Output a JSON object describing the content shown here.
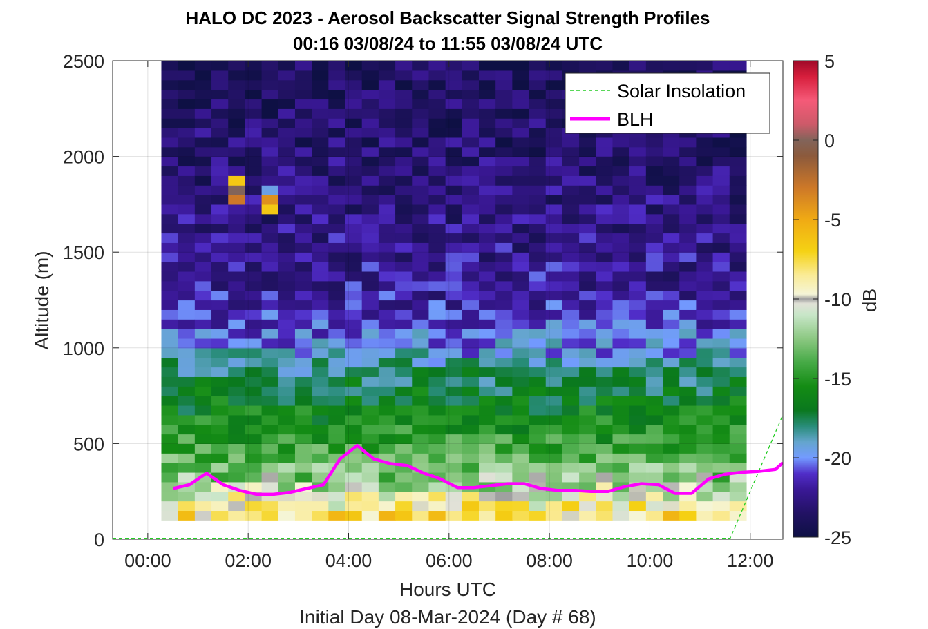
{
  "chart_data": {
    "type": "heatmap",
    "title": "HALO DC 2023 - Aerosol Backscatter Signal Strength Profiles",
    "subtitle": "00:16 03/08/24 to 11:55 03/08/24  UTC",
    "xlabel": "Hours UTC",
    "xlabel2": "Initial Day 08-Mar-2024 (Day # 68)",
    "ylabel": "Altitude (m)",
    "xlim": [
      -0.7,
      12.65
    ],
    "ylim": [
      0,
      2500
    ],
    "x_ticks": [
      0,
      2,
      4,
      6,
      8,
      10,
      12
    ],
    "x_tick_labels": [
      "00:00",
      "02:00",
      "04:00",
      "06:00",
      "08:00",
      "10:00",
      "12:00"
    ],
    "y_ticks": [
      0,
      500,
      1000,
      1500,
      2000,
      2500
    ],
    "y_tick_labels": [
      "0",
      "500",
      "1000",
      "1500",
      "2000",
      "2500"
    ],
    "grid": true,
    "colorbar": {
      "label": "dB",
      "range": [
        -25,
        5
      ],
      "ticks": [
        5,
        0,
        -5,
        -10,
        -15,
        -20,
        -25
      ],
      "tick_labels": [
        "5",
        "0",
        "-5",
        "-10",
        "-15",
        "-20",
        "-25"
      ]
    },
    "heatmap": {
      "x_start_hour": 0.27,
      "x_end_hour": 11.92,
      "y_bottom_m": 100,
      "y_top_m": 2500,
      "band_profile_db": [
        {
          "z": 100,
          "db": -7.5
        },
        {
          "z": 200,
          "db": -9.5
        },
        {
          "z": 300,
          "db": -12
        },
        {
          "z": 450,
          "db": -14
        },
        {
          "z": 650,
          "db": -16
        },
        {
          "z": 850,
          "db": -17.5
        },
        {
          "z": 1000,
          "db": -20
        },
        {
          "z": 1300,
          "db": -22
        },
        {
          "z": 2500,
          "db": -24
        }
      ],
      "hotspots": [
        {
          "hour": 1.65,
          "alt": 1860,
          "db": -6.5
        },
        {
          "hour": 1.65,
          "alt": 1810,
          "db": 0
        },
        {
          "hour": 1.65,
          "alt": 1760,
          "db": -3
        },
        {
          "hour": 2.33,
          "alt": 1810,
          "db": -19.5
        },
        {
          "hour": 2.33,
          "alt": 1760,
          "db": -4
        },
        {
          "hour": 2.33,
          "alt": 1710,
          "db": -6.5
        }
      ]
    },
    "series": [
      {
        "name": "Solar Insolation",
        "style": "dashed",
        "color": "#22cc22",
        "x": [
          -0.7,
          11.6,
          12.65
        ],
        "y": [
          5,
          5,
          650
        ]
      },
      {
        "name": "BLH",
        "style": "solid",
        "color": "#ff00ff",
        "x": [
          0.5,
          0.83,
          1.17,
          1.5,
          1.83,
          2.17,
          2.5,
          2.83,
          3.17,
          3.5,
          3.83,
          4.17,
          4.5,
          4.83,
          5.17,
          5.5,
          5.83,
          6.17,
          6.5,
          6.83,
          7.17,
          7.5,
          7.83,
          8.17,
          8.5,
          8.83,
          9.17,
          9.5,
          9.83,
          10.17,
          10.5,
          10.83,
          11.17,
          11.5,
          11.83,
          12.17,
          12.5,
          12.65
        ],
        "y": [
          265,
          285,
          345,
          285,
          255,
          235,
          235,
          245,
          265,
          285,
          420,
          490,
          420,
          395,
          385,
          345,
          315,
          270,
          270,
          280,
          290,
          290,
          265,
          255,
          255,
          250,
          250,
          275,
          290,
          285,
          240,
          240,
          315,
          340,
          350,
          355,
          365,
          400
        ]
      }
    ],
    "legend": {
      "position": "top-right",
      "entries": [
        "Solar Insolation",
        "BLH"
      ]
    }
  }
}
